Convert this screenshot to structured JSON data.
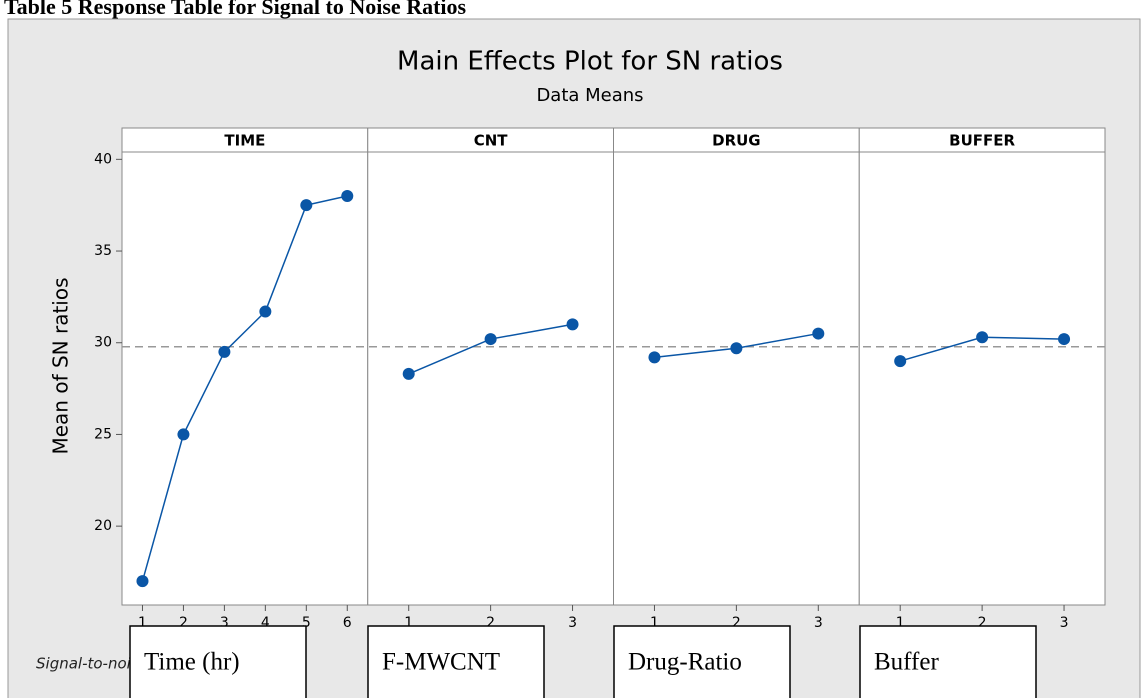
{
  "caption": "Table 5 Response Table for Signal to Noise Ratios",
  "chart_data": {
    "type": "line",
    "title": "Main Effects Plot for SN ratios",
    "subtitle": "Data Means",
    "y_label": "Mean of SN ratios",
    "ylim": [
      15.7,
      40.4
    ],
    "yticks": [
      20,
      25,
      30,
      35,
      40
    ],
    "reference_line": 29.78,
    "color": "#0a56a6",
    "panels": [
      {
        "name": "TIME",
        "x": [
          1,
          2,
          3,
          4,
          5,
          6
        ],
        "xlim": [
          0.5,
          6.5
        ],
        "xticks": [
          1,
          2,
          3,
          4,
          5,
          6
        ],
        "values": [
          17.0,
          25.0,
          29.5,
          31.7,
          37.5,
          38.0
        ]
      },
      {
        "name": "CNT",
        "x": [
          1,
          2,
          3
        ],
        "xlim": [
          0.5,
          3.5
        ],
        "xticks": [
          1,
          2,
          3
        ],
        "values": [
          28.3,
          30.2,
          31.0
        ]
      },
      {
        "name": "DRUG",
        "x": [
          1,
          2,
          3
        ],
        "xlim": [
          0.5,
          3.5
        ],
        "xticks": [
          1,
          2,
          3
        ],
        "values": [
          29.2,
          29.7,
          30.5
        ]
      },
      {
        "name": "BUFFER",
        "x": [
          1,
          2,
          3
        ],
        "xlim": [
          0.5,
          3.5
        ],
        "xticks": [
          1,
          2,
          3
        ],
        "values": [
          29.0,
          30.3,
          30.2
        ]
      }
    ],
    "footnote": "Signal-to-noise: Larger is better"
  },
  "boxes": [
    "Time (hr)",
    "F-MWCNT",
    "Drug-Ratio",
    "Buffer"
  ]
}
